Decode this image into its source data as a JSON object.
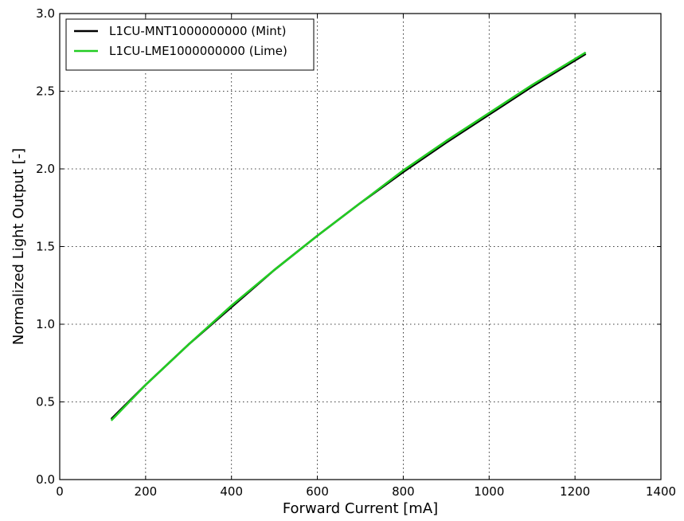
{
  "chart_data": {
    "type": "line",
    "title": "",
    "xlabel": "Forward Current [mA]",
    "ylabel": "Normalized Light Output [-]",
    "xlim": [
      0,
      1400
    ],
    "ylim": [
      0.0,
      3.0
    ],
    "xticks": [
      0,
      200,
      400,
      600,
      800,
      1000,
      1200,
      1400
    ],
    "xtick_labels": [
      "0",
      "200",
      "400",
      "600",
      "800",
      "1000",
      "1200",
      "1400"
    ],
    "yticks": [
      0.0,
      0.5,
      1.0,
      1.5,
      2.0,
      2.5,
      3.0
    ],
    "ytick_labels": [
      "0.0",
      "0.5",
      "1.0",
      "1.5",
      "2.0",
      "2.5",
      "3.0"
    ],
    "grid": true,
    "legend_position": "top-left",
    "series": [
      {
        "name": "L1CU-MNT1000000000 (Mint)",
        "color": "#000000",
        "x": [
          120,
          200,
          300,
          400,
          500,
          600,
          700,
          800,
          900,
          1000,
          1100,
          1225
        ],
        "y": [
          0.39,
          0.61,
          0.87,
          1.11,
          1.35,
          1.57,
          1.78,
          1.98,
          2.17,
          2.35,
          2.53,
          2.74
        ]
      },
      {
        "name": "L1CU-LME1000000000 (Lime)",
        "color": "#22cc22",
        "x": [
          120,
          200,
          300,
          400,
          500,
          600,
          700,
          800,
          900,
          1000,
          1100,
          1225
        ],
        "y": [
          0.38,
          0.61,
          0.87,
          1.12,
          1.35,
          1.57,
          1.78,
          1.99,
          2.18,
          2.36,
          2.54,
          2.75
        ]
      }
    ]
  }
}
